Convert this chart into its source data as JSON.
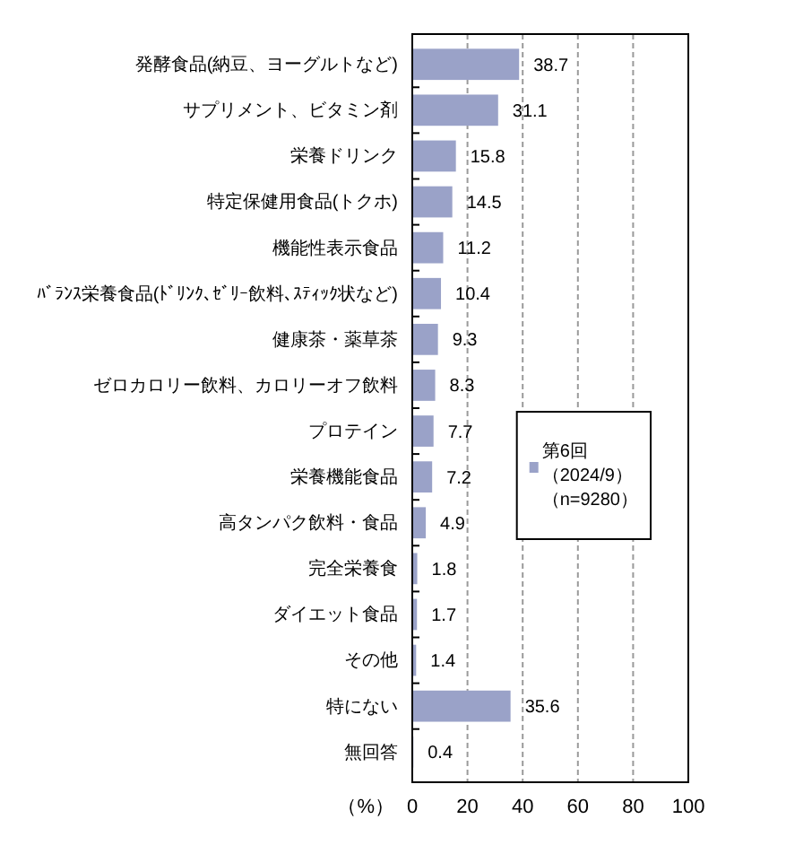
{
  "chart_data": {
    "type": "bar",
    "orientation": "horizontal",
    "categories": [
      "発酵食品(納豆、ヨーグルトなど)",
      "サプリメント、ビタミン剤",
      "栄養ドリンク",
      "特定保健用食品(トクホ)",
      "機能性表示食品",
      "ﾊﾞﾗﾝｽ栄養食品(ﾄﾞﾘﾝｸ､ｾﾞﾘｰ飲料､ｽﾃｨｯｸ状など)",
      "健康茶・薬草茶",
      "ゼロカロリー飲料、カロリーオフ飲料",
      "プロテイン",
      "栄養機能食品",
      "高タンパク飲料・食品",
      "完全栄養食",
      "ダイエット食品",
      "その他",
      "特にない",
      "無回答"
    ],
    "series": [
      {
        "name": "第6回（2024/9）（n=9280）",
        "color": "#9aa2c8",
        "values": [
          38.7,
          31.1,
          15.8,
          14.5,
          11.2,
          10.4,
          9.3,
          8.3,
          7.7,
          7.2,
          4.9,
          1.8,
          1.7,
          1.4,
          35.6,
          0.4
        ]
      }
    ],
    "xlim": [
      0,
      100
    ],
    "xticks": [
      0,
      20,
      40,
      60,
      80,
      100
    ],
    "xlabel": "（%）",
    "grid": "x",
    "legend": "right",
    "data_labels": true
  }
}
